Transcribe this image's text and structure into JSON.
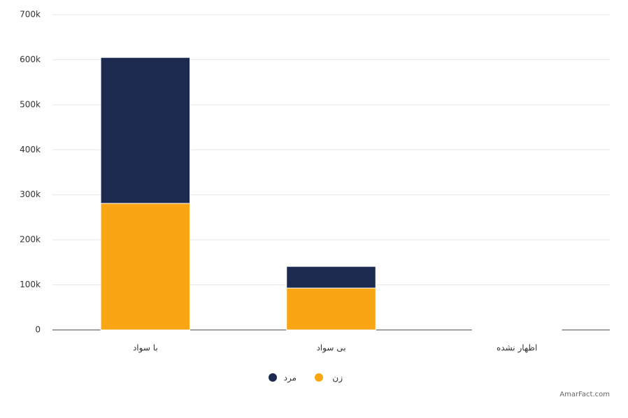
{
  "chart_data": {
    "type": "stacked_bar",
    "categories": [
      "با سواد",
      "بی سواد",
      "اظهار نشده"
    ],
    "series": [
      {
        "name": "زن",
        "color": "#f9a514",
        "values": [
          281000,
          93000,
          1000
        ]
      },
      {
        "name": "مرد",
        "color": "#1b2a4e",
        "values": [
          324000,
          48000,
          1000
        ]
      }
    ],
    "ylim": [
      0,
      700000
    ],
    "yticks": [
      0,
      {
        "value": 100000,
        "label": "100k"
      },
      {
        "value": 200000,
        "label": "200k"
      },
      {
        "value": 300000,
        "label": "300k"
      },
      {
        "value": 400000,
        "label": "400k"
      },
      {
        "value": 500000,
        "label": "500k"
      },
      {
        "value": 600000,
        "label": "600k"
      },
      {
        "value": 700000,
        "label": "700k"
      }
    ],
    "grid": true,
    "watermark": "AmarFact.com"
  }
}
